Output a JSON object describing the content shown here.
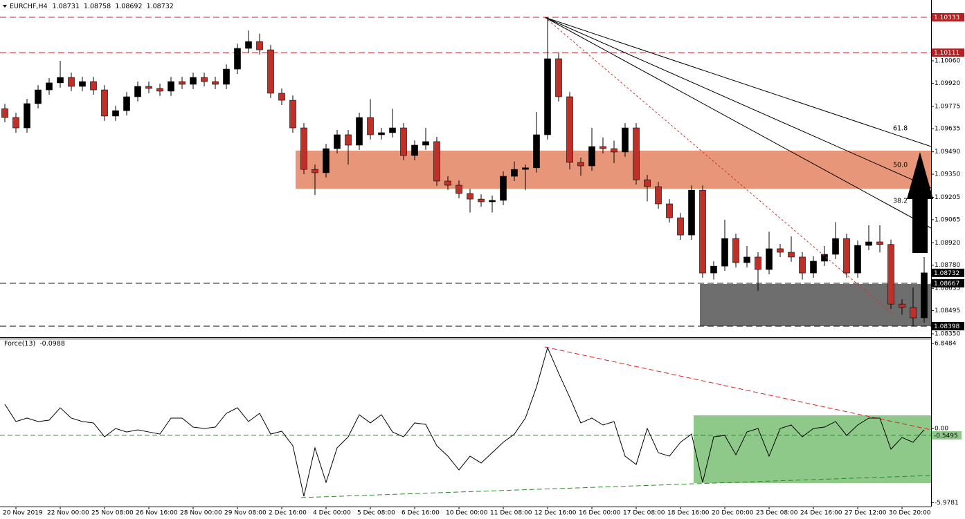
{
  "chart_data": {
    "type": "candlestick",
    "title": "EURCHF,H4",
    "header_values": [
      1.08731,
      1.08758,
      1.08692,
      1.08732
    ],
    "categories": [
      null,
      "20 Nov 2019",
      null,
      null,
      null,
      "22 Nov 00:00",
      null,
      null,
      null,
      "25 Nov 08:00",
      null,
      null,
      null,
      "26 Nov 16:00",
      null,
      null,
      null,
      "28 Nov 00:00",
      null,
      null,
      null,
      "29 Nov 08:00",
      null,
      null,
      null,
      "2 Dec 16:00",
      null,
      null,
      null,
      "4 Dec 00:00",
      null,
      null,
      null,
      "5 Dec 08:00",
      null,
      null,
      null,
      "6 Dec 16:00",
      null,
      null,
      null,
      "10 Dec 00:00",
      null,
      null,
      null,
      "11 Dec 08:00",
      null,
      null,
      null,
      "12 Dec 16:00",
      null,
      null,
      null,
      "16 Dec 00:00",
      null,
      null,
      null,
      "17 Dec 08:00",
      null,
      null,
      null,
      "18 Dec 16:00",
      null,
      null,
      null,
      "20 Dec 00:00",
      null,
      null,
      null,
      "23 Dec 08:00",
      null,
      null,
      null,
      "24 Dec 16:00",
      null,
      null,
      null,
      "27 Dec 12:00",
      null,
      null,
      null,
      "30 Dec 20:00",
      null,
      null
    ],
    "open": [
      1.0976,
      1.09705,
      1.0964,
      1.09792,
      1.09878,
      1.09922,
      1.09956,
      1.099,
      1.0993,
      1.09878,
      1.09714,
      1.09748,
      1.09835,
      1.099,
      1.09887,
      1.0987,
      1.0993,
      1.09913,
      1.09956,
      1.0993,
      1.09913,
      1.10008,
      1.10138,
      1.10181,
      1.10129,
      1.09857,
      1.09813,
      1.0964,
      1.0938,
      1.09359,
      1.0951,
      1.09597,
      1.09532,
      1.09705,
      1.09597,
      1.0961,
      1.0964,
      1.09467,
      1.09532,
      1.09554,
      1.09307,
      1.09281,
      1.09229,
      1.09194,
      1.09177,
      1.09186,
      1.09337,
      1.0938,
      1.0939,
      1.09597,
      1.10073,
      1.09835,
      1.09424,
      1.09402,
      1.09523,
      1.0951,
      1.09489,
      1.0964,
      1.09315,
      1.09272,
      1.09164,
      1.09077,
      1.08969,
      1.0925,
      1.08731,
      1.08774,
      1.08947,
      1.08796,
      1.08831,
      1.08753,
      1.08883,
      1.08861,
      1.08831,
      1.08731,
      1.08805,
      1.08848,
      1.08947,
      1.08731,
      1.08904,
      1.08926,
      1.0891,
      1.08536,
      1.08515,
      1.0845
    ],
    "high": [
      1.0979,
      1.09735,
      1.09822,
      1.09908,
      1.09952,
      1.1006,
      1.09986,
      1.0996,
      1.0996,
      1.09908,
      1.09778,
      1.09865,
      1.0993,
      1.0993,
      1.09917,
      1.0996,
      1.0996,
      1.09986,
      1.09986,
      1.0996,
      1.10038,
      1.10168,
      1.1025,
      1.1023,
      1.10159,
      1.09887,
      1.09843,
      1.0967,
      1.0941,
      1.0954,
      1.09627,
      1.09627,
      1.09735,
      1.0982,
      1.0964,
      1.0976,
      1.0967,
      1.09562,
      1.0964,
      1.09584,
      1.09337,
      1.09311,
      1.09259,
      1.09224,
      1.09216,
      1.09367,
      1.0943,
      1.0941,
      1.0974,
      1.10333,
      1.10111,
      1.09865,
      1.09454,
      1.0964,
      1.0958,
      1.0956,
      1.0967,
      1.0967,
      1.09345,
      1.09302,
      1.09194,
      1.09107,
      1.0928,
      1.0928,
      1.08804,
      1.09065,
      1.08977,
      1.089,
      1.08861,
      1.0899,
      1.08913,
      1.0896,
      1.08861,
      1.08835,
      1.089,
      1.0905,
      1.08977,
      1.08934,
      1.0903,
      1.0903,
      1.0894,
      1.08566,
      1.0864,
      1.08831
    ],
    "low": [
      1.09675,
      1.0961,
      1.0961,
      1.09762,
      1.09848,
      1.09892,
      1.0987,
      1.0987,
      1.09848,
      1.09684,
      1.09684,
      1.09718,
      1.09805,
      1.09857,
      1.0984,
      1.0984,
      1.09883,
      1.09883,
      1.099,
      1.09883,
      1.09883,
      1.09978,
      1.10108,
      1.10099,
      1.09827,
      1.09783,
      1.0961,
      1.0935,
      1.0922,
      1.09329,
      1.0948,
      1.0941,
      1.09502,
      1.09567,
      1.09567,
      1.0958,
      1.09437,
      1.09437,
      1.09502,
      1.09277,
      1.09251,
      1.09199,
      1.0911,
      1.09147,
      1.0911,
      1.09156,
      1.09307,
      1.0925,
      1.0936,
      1.09567,
      1.09805,
      1.0938,
      1.0934,
      1.09372,
      1.0948,
      1.0942,
      1.09459,
      1.09285,
      1.0918,
      1.09134,
      1.09047,
      1.08939,
      1.08939,
      1.08701,
      1.0869,
      1.08744,
      1.08766,
      1.08766,
      1.0862,
      1.08723,
      1.08831,
      1.08801,
      1.0869,
      1.08701,
      1.08775,
      1.08818,
      1.08701,
      1.08701,
      1.08874,
      1.0886,
      1.08506,
      1.0847,
      1.08398,
      1.0842
    ],
    "close": [
      1.09705,
      1.0964,
      1.09792,
      1.09878,
      1.09922,
      1.09956,
      1.099,
      1.0993,
      1.09878,
      1.09714,
      1.09748,
      1.09835,
      1.099,
      1.09887,
      1.0987,
      1.0993,
      1.09913,
      1.09956,
      1.0993,
      1.09913,
      1.10008,
      1.10138,
      1.10181,
      1.10129,
      1.09857,
      1.09813,
      1.0964,
      1.0938,
      1.09359,
      1.0951,
      1.09597,
      1.09532,
      1.09705,
      1.09597,
      1.0961,
      1.0964,
      1.09467,
      1.09532,
      1.09554,
      1.09307,
      1.09281,
      1.09229,
      1.09194,
      1.09177,
      1.09186,
      1.09337,
      1.0938,
      1.0939,
      1.09597,
      1.10073,
      1.09835,
      1.09424,
      1.09402,
      1.09523,
      1.0951,
      1.09489,
      1.0964,
      1.09315,
      1.09272,
      1.09164,
      1.09077,
      1.08969,
      1.0925,
      1.08731,
      1.08774,
      1.08947,
      1.08796,
      1.08831,
      1.08753,
      1.08883,
      1.08861,
      1.08831,
      1.08731,
      1.08805,
      1.08848,
      1.08947,
      1.08731,
      1.08904,
      1.08926,
      1.0891,
      1.08536,
      1.08515,
      1.0845,
      1.08732
    ],
    "up_color": "#000000",
    "down_color": "#c0302a",
    "ylim": [
      1.08333,
      1.10441
    ],
    "yticks": [
      {
        "value": 1.1006,
        "label": "1.10060"
      },
      {
        "value": 1.0992,
        "label": "1.09920"
      },
      1.09775,
      1.09635,
      {
        "value": 1.0949,
        "label": "1.09490"
      },
      {
        "value": 1.0935,
        "label": "1.09350"
      },
      1.09205,
      1.09065,
      {
        "value": 1.0892,
        "label": "1.08920"
      },
      {
        "value": 1.0878,
        "label": "1.08780"
      },
      1.08635,
      1.08495,
      {
        "value": 1.0835,
        "label": "1.08350"
      }
    ],
    "grid": false,
    "levels": [
      {
        "value": 1.10333,
        "color": "#b22222"
      },
      {
        "value": 1.10111,
        "color": "#b22222"
      },
      {
        "value": 1.08667,
        "color": "#000000"
      },
      {
        "value": 1.08398,
        "color": "#000000"
      }
    ],
    "last_price": 1.08732,
    "annotations": [
      "61.8",
      "50.0",
      "38.2"
    ],
    "indicator": {
      "type": "line",
      "title": "Force(13)",
      "value": -0.0988,
      "color": "#000000",
      "values": [
        1.95,
        0.56,
        0.84,
        0.56,
        0.67,
        1.67,
        0.84,
        0.56,
        0.45,
        -0.67,
        0,
        -0.28,
        -0.11,
        -0.28,
        -0.45,
        0.84,
        0.84,
        0.11,
        0,
        0.11,
        1.22,
        1.67,
        0.56,
        1.22,
        -0.45,
        -0.22,
        -1.39,
        -5.46,
        -1.56,
        -4.34,
        -1.56,
        -0.67,
        1.11,
        0.45,
        1.11,
        -0.28,
        -0.67,
        0.45,
        0.33,
        -1.39,
        -2.23,
        -3.34,
        -2.23,
        -2.78,
        -1.95,
        -1.11,
        -0.45,
        0.84,
        3.34,
        6.51,
        4.45,
        2.51,
        0.45,
        0.84,
        0.28,
        0.56,
        -2.23,
        -2.9,
        0,
        -1.95,
        -2.23,
        -1.11,
        -0.45,
        -4.34,
        -0.67,
        -0.56,
        -2.12,
        -0.28,
        0,
        -2.23,
        0,
        0.28,
        -0.67,
        0,
        0.11,
        0.56,
        -0.56,
        0.28,
        0.84,
        0.84,
        -1.67,
        -0.72,
        -1.11,
        -0.0988
      ],
      "ylim": [
        -6.29,
        7.24
      ],
      "yticks": [
        6.8484,
        {
          "value": 0,
          "label": "0.00"
        },
        -5.9781
      ],
      "level": -0.5495
    }
  }
}
